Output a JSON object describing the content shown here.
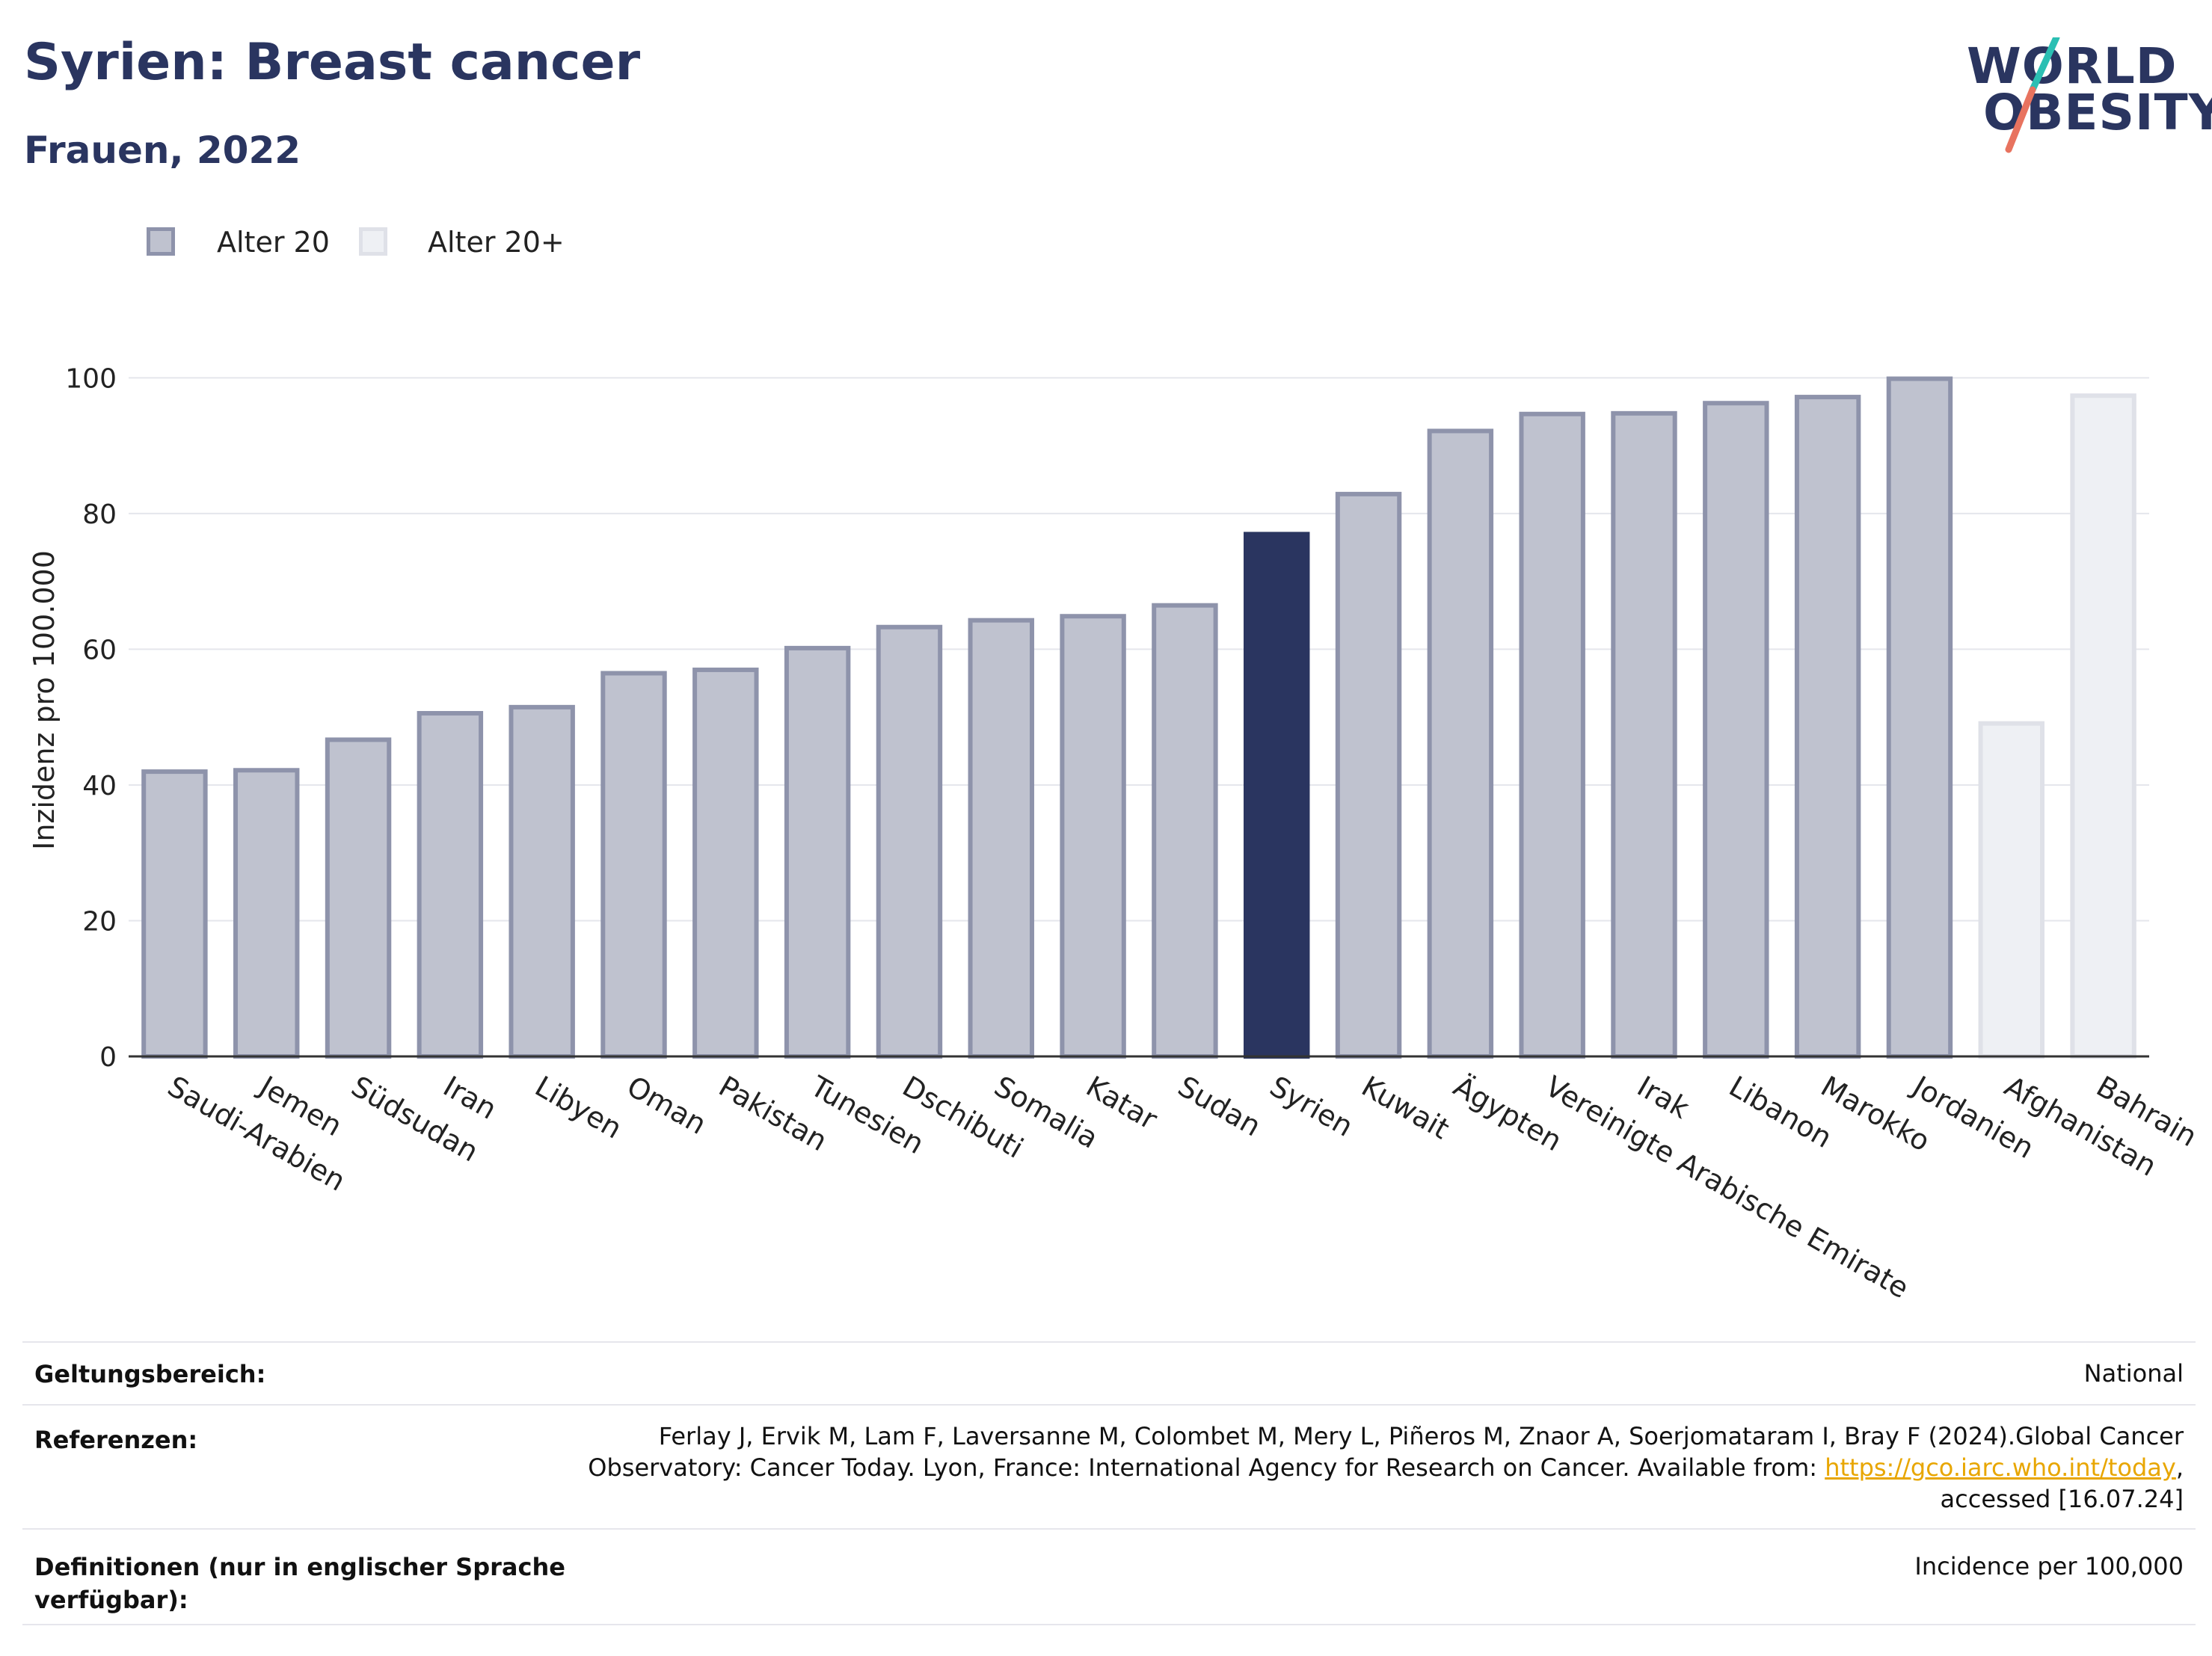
{
  "header": {
    "title": "Syrien: Breast cancer",
    "subtitle": "Frauen, 2022"
  },
  "logo": {
    "line1": "WORLD",
    "line2": "OBESITY",
    "colors": {
      "text": "#2a3560",
      "slash_top": "#2bbfb3",
      "slash_bottom": "#e8735f"
    }
  },
  "legend": [
    {
      "label": "Alter 20",
      "fill": "#bfc2cf",
      "stroke": "#8e93ab"
    },
    {
      "label": "Alter 20+",
      "fill": "#eef0f4",
      "stroke": "#dfe1e8"
    }
  ],
  "chart_data": {
    "type": "bar",
    "ylabel": "Inzidenz pro 100.000",
    "ylim": [
      0,
      105
    ],
    "yticks": [
      0,
      20,
      40,
      60,
      80,
      100
    ],
    "grid": true,
    "highlight": "Syrien",
    "highlight_color": "#2a3560",
    "categories": [
      "Saudi-Arabien",
      "Jemen",
      "Südsudan",
      "Iran",
      "Libyen",
      "Oman",
      "Pakistan",
      "Tunesien",
      "Dschibuti",
      "Somalia",
      "Katar",
      "Sudan",
      "Syrien",
      "Kuwait",
      "Ägypten",
      "Vereinigte Arabische Emirate",
      "Irak",
      "Libanon",
      "Marokko",
      "Jordanien",
      "Afghanistan",
      "Bahrain"
    ],
    "values": [
      42.3,
      42.5,
      47,
      50.9,
      51.8,
      56.8,
      57.3,
      60.5,
      63.6,
      64.6,
      65.2,
      66.8,
      77.3,
      83.2,
      92.5,
      95,
      95.1,
      96.6,
      97.5,
      100.2,
      49.4,
      97.7
    ],
    "groups": [
      "Alter 20",
      "Alter 20",
      "Alter 20",
      "Alter 20",
      "Alter 20",
      "Alter 20",
      "Alter 20",
      "Alter 20",
      "Alter 20",
      "Alter 20",
      "Alter 20",
      "Alter 20",
      "Alter 20",
      "Alter 20",
      "Alter 20",
      "Alter 20",
      "Alter 20",
      "Alter 20",
      "Alter 20",
      "Alter 20",
      "Alter 20+",
      "Alter 20+"
    ]
  },
  "footer": {
    "rows": [
      {
        "key": "Geltungsbereich:",
        "value": "National"
      },
      {
        "key": "Referenzen:",
        "value_line1": "Ferlay J, Ervik M, Lam F, Laversanne M, Colombet M, Mery L, Piñeros M, Znaor A, Soerjomataram I, Bray F (2024).Global Cancer",
        "value_line2_pre": "Observatory: Cancer Today. Lyon, France: International Agency for Research on Cancer. Available from: ",
        "link": "https://gco.iarc.who.int/today",
        "value_line2_post": ",",
        "value_line3": "accessed [16.07.24]"
      },
      {
        "key_line1": "Definitionen (nur in englischer Sprache",
        "key_line2": "verfügbar):",
        "value": "Incidence per 100,000"
      }
    ]
  }
}
